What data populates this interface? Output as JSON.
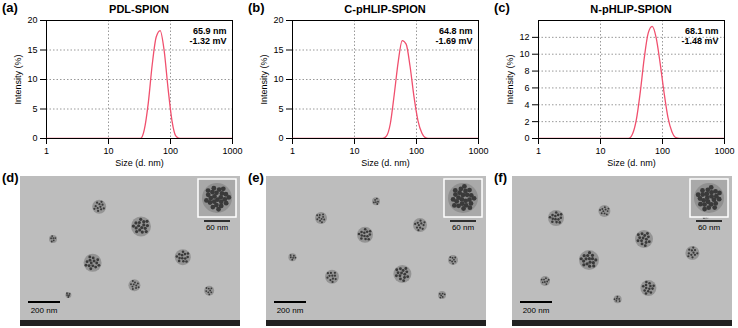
{
  "chart_data": [
    {
      "type": "line",
      "panel": "(a)",
      "title": "PDL-SPION",
      "x_label": "Size (d. nm)",
      "y_label": "Intensity (%)",
      "x": [
        1,
        28.2,
        32.7,
        37.8,
        43.8,
        50.7,
        58.8,
        68.1,
        78.8,
        91.3,
        105.7,
        122.4,
        141.8,
        1000
      ],
      "values": [
        0,
        0,
        0,
        1.5,
        6.0,
        12.5,
        17.2,
        18.3,
        15.0,
        8.5,
        3.0,
        0.4,
        0,
        0
      ],
      "color": "#f0506e",
      "log": "x",
      "grid": true,
      "xlim": [
        1,
        1000
      ],
      "xticks": [
        1,
        10,
        100,
        1000
      ],
      "ylim": [
        0,
        20
      ],
      "yticks": [
        0,
        5,
        10,
        15,
        20
      ],
      "annotations": [
        "65.9 nm",
        "-1.32 mV"
      ]
    },
    {
      "type": "line",
      "panel": "(b)",
      "title": "C-pHLIP-SPION",
      "x_label": "Size (d. nm)",
      "y_label": "Intensity (%)",
      "x": [
        1,
        28.2,
        32.7,
        37.8,
        43.8,
        50.7,
        58.8,
        68.1,
        78.8,
        91.3,
        105.7,
        122.4,
        141.8,
        164.2,
        1000
      ],
      "values": [
        0,
        0,
        0.4,
        2.5,
        7.5,
        13.0,
        16.6,
        16.0,
        12.2,
        7.0,
        3.0,
        0.9,
        0.1,
        0,
        0
      ],
      "color": "#f0506e",
      "log": "x",
      "grid": true,
      "xlim": [
        1,
        1000
      ],
      "xticks": [
        1,
        10,
        100,
        1000
      ],
      "ylim": [
        0,
        20
      ],
      "yticks": [
        0,
        5,
        10,
        15,
        20
      ],
      "annotations": [
        "64.8 nm",
        "-1.69 mV"
      ]
    },
    {
      "type": "line",
      "panel": "(c)",
      "title": "N-pHLIP-SPION",
      "x_label": "Size (d. nm)",
      "y_label": "Intensity (%)",
      "x": [
        1,
        28.2,
        32.7,
        37.8,
        43.8,
        50.7,
        58.8,
        68.1,
        78.8,
        91.3,
        105.7,
        122.4,
        141.8,
        164.2,
        190.1,
        1000
      ],
      "values": [
        0,
        0,
        0.5,
        2.2,
        5.5,
        9.5,
        12.5,
        13.3,
        12.0,
        9.0,
        5.5,
        2.5,
        0.8,
        0.1,
        0,
        0
      ],
      "color": "#f0506e",
      "log": "x",
      "grid": true,
      "xlim": [
        1,
        1000
      ],
      "xticks": [
        1,
        10,
        100,
        1000
      ],
      "ylim": [
        0,
        14
      ],
      "yticks": [
        0,
        2,
        4,
        6,
        8,
        10,
        12
      ],
      "annotations": [
        "68.1 nm",
        "-1.48 mV"
      ]
    }
  ],
  "images": [
    {
      "panel": "(d)",
      "scale_bar": "200 nm",
      "inset_scale_bar": "60 nm"
    },
    {
      "panel": "(e)",
      "scale_bar": "200 nm",
      "inset_scale_bar": "60 nm"
    },
    {
      "panel": "(f)",
      "scale_bar": "200 nm",
      "inset_scale_bar": "60 nm"
    }
  ]
}
